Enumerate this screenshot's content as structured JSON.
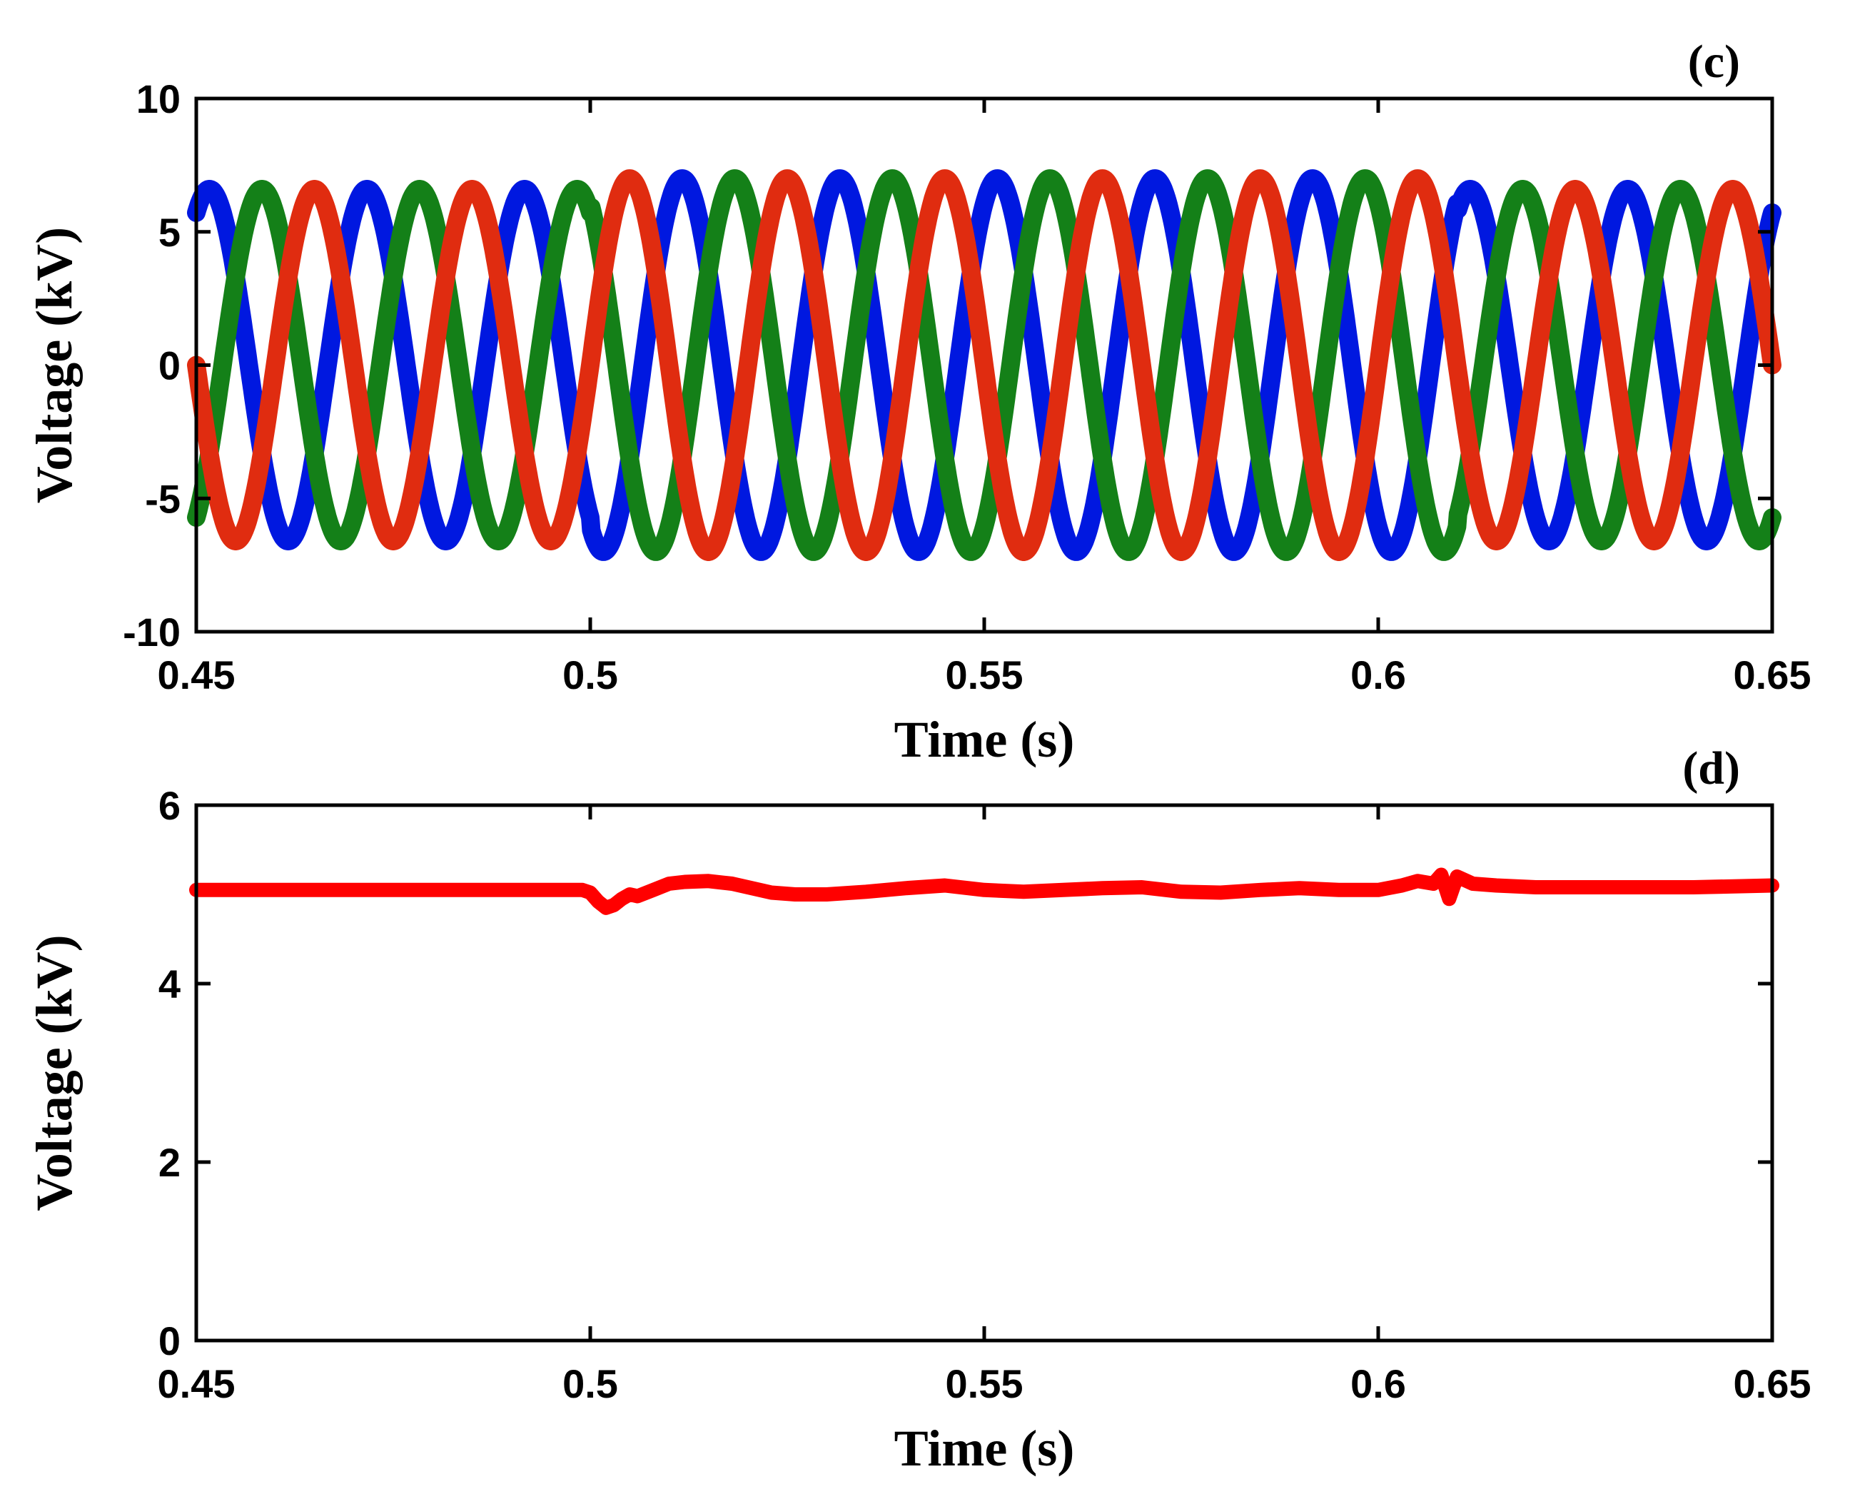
{
  "chart_data": [
    {
      "type": "line",
      "panel_label": "(c)",
      "xlabel": "Time (s)",
      "ylabel": "Voltage (kV)",
      "xlim": [
        0.45,
        0.65
      ],
      "ylim": [
        -10,
        10
      ],
      "xticks": [
        0.45,
        0.5,
        0.55,
        0.6,
        0.65
      ],
      "yticks": [
        -10,
        -5,
        0,
        5,
        10
      ],
      "xtick_labels": [
        "0.45",
        "0.5",
        "0.55",
        "0.6",
        "0.65"
      ],
      "ytick_labels": [
        "-10",
        "-5",
        "0",
        "5",
        "10"
      ],
      "grid": false,
      "series": [
        {
          "color": "#0018e0",
          "waveform": "sine",
          "frequency_hz": 50,
          "phase_deg": -120,
          "x": [
            0.45,
            0.5,
            0.5,
            0.61,
            0.61,
            0.65
          ],
          "amplitude": [
            6.6,
            6.6,
            7.0,
            7.0,
            6.6,
            6.6
          ]
        },
        {
          "color": "#148018",
          "waveform": "sine",
          "frequency_hz": 50,
          "phase_deg": 120,
          "x": [
            0.45,
            0.5,
            0.5,
            0.61,
            0.61,
            0.65
          ],
          "amplitude": [
            6.6,
            6.6,
            7.0,
            7.0,
            6.6,
            6.6
          ]
        },
        {
          "color": "#e02c10",
          "waveform": "sine",
          "frequency_hz": 50,
          "phase_deg": 0,
          "x": [
            0.45,
            0.5,
            0.5,
            0.61,
            0.61,
            0.65
          ],
          "amplitude": [
            6.6,
            6.6,
            7.0,
            7.0,
            6.6,
            6.6
          ]
        }
      ]
    },
    {
      "type": "line",
      "panel_label": "(d)",
      "xlabel": "Time (s)",
      "ylabel": "Voltage (kV)",
      "xlim": [
        0.45,
        0.65
      ],
      "ylim": [
        0,
        6
      ],
      "xticks": [
        0.45,
        0.5,
        0.55,
        0.6,
        0.65
      ],
      "yticks": [
        0,
        2,
        4,
        6
      ],
      "xtick_labels": [
        "0.45",
        "0.5",
        "0.55",
        "0.6",
        "0.65"
      ],
      "ytick_labels": [
        "0",
        "2",
        "4",
        "6"
      ],
      "grid": false,
      "series": [
        {
          "color": "#ff0000",
          "x": [
            0.45,
            0.46,
            0.47,
            0.48,
            0.49,
            0.499,
            0.5,
            0.501,
            0.502,
            0.503,
            0.504,
            0.505,
            0.506,
            0.508,
            0.51,
            0.512,
            0.515,
            0.518,
            0.52,
            0.523,
            0.526,
            0.53,
            0.535,
            0.54,
            0.545,
            0.55,
            0.555,
            0.56,
            0.565,
            0.57,
            0.575,
            0.58,
            0.585,
            0.59,
            0.595,
            0.6,
            0.603,
            0.605,
            0.607,
            0.608,
            0.609,
            0.61,
            0.612,
            0.615,
            0.62,
            0.63,
            0.64,
            0.65
          ],
          "y": [
            5.05,
            5.05,
            5.05,
            5.05,
            5.05,
            5.05,
            5.02,
            4.92,
            4.85,
            4.88,
            4.95,
            5.0,
            4.98,
            5.05,
            5.12,
            5.14,
            5.15,
            5.12,
            5.08,
            5.02,
            5.0,
            5.0,
            5.03,
            5.07,
            5.1,
            5.05,
            5.03,
            5.05,
            5.07,
            5.08,
            5.03,
            5.02,
            5.05,
            5.07,
            5.05,
            5.05,
            5.1,
            5.15,
            5.12,
            5.22,
            4.95,
            5.2,
            5.12,
            5.1,
            5.08,
            5.08,
            5.08,
            5.1
          ]
        }
      ]
    }
  ]
}
